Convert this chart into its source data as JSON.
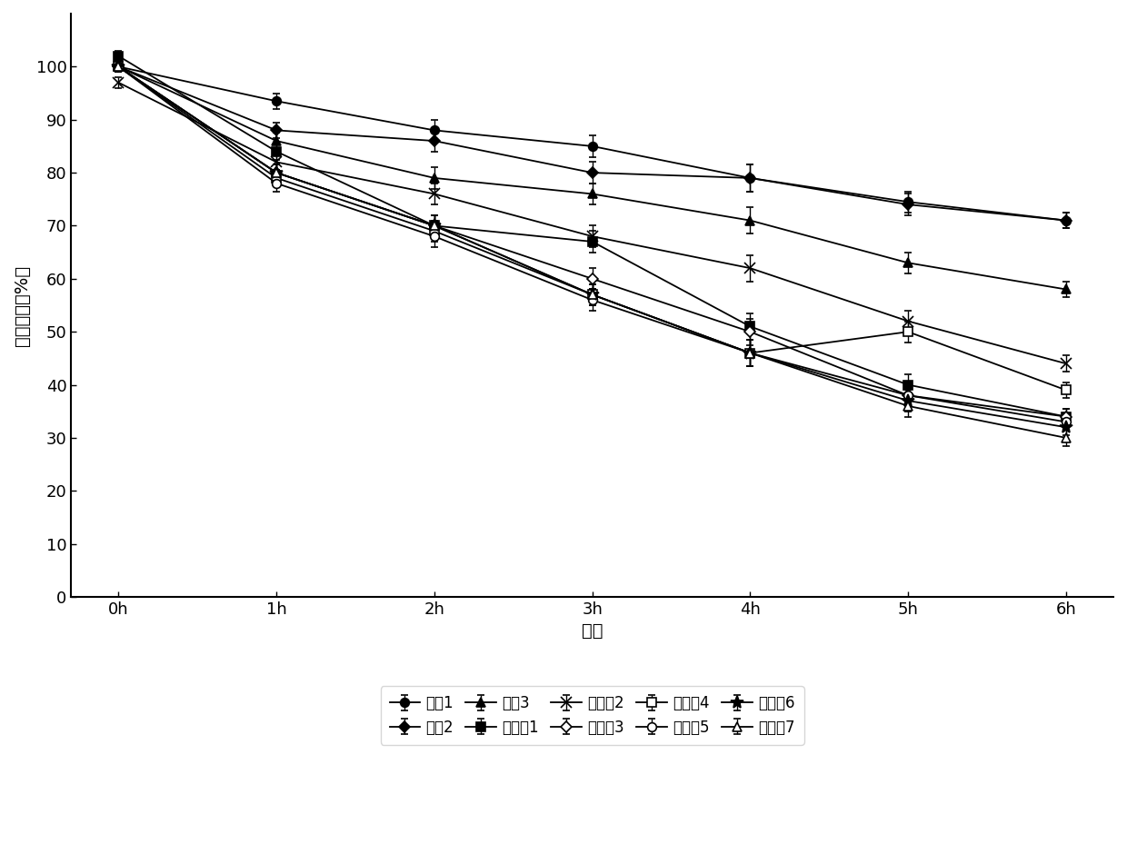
{
  "x_labels": [
    "0h",
    "1h",
    "2h",
    "3h",
    "4h",
    "5h",
    "6h"
  ],
  "x_values": [
    0,
    1,
    2,
    3,
    4,
    5,
    6
  ],
  "series": [
    {
      "name": "对比1",
      "y": [
        100,
        93.5,
        88,
        85,
        79,
        74.5,
        71
      ],
      "yerr": [
        1.0,
        1.5,
        2.0,
        2.0,
        2.5,
        2.0,
        1.5
      ],
      "marker": "o",
      "mfc": "black",
      "mec": "black",
      "ms": 7
    },
    {
      "name": "对比2",
      "y": [
        100,
        88,
        86,
        80,
        79,
        74,
        71
      ],
      "yerr": [
        1.0,
        1.5,
        2.0,
        2.0,
        2.5,
        2.0,
        1.5
      ],
      "marker": "D",
      "mfc": "black",
      "mec": "black",
      "ms": 6
    },
    {
      "name": "对比3",
      "y": [
        100,
        86,
        79,
        76,
        71,
        63,
        58
      ],
      "yerr": [
        1.0,
        1.5,
        2.0,
        2.0,
        2.5,
        2.0,
        1.5
      ],
      "marker": "^",
      "mfc": "black",
      "mec": "black",
      "ms": 7
    },
    {
      "name": "实施例1",
      "y": [
        102,
        84,
        70,
        67,
        51,
        40,
        34
      ],
      "yerr": [
        1.0,
        1.5,
        2.0,
        2.0,
        2.5,
        2.0,
        1.5
      ],
      "marker": "s",
      "mfc": "black",
      "mec": "black",
      "ms": 7
    },
    {
      "name": "实施例2",
      "y": [
        97,
        82,
        76,
        68,
        62,
        52,
        44
      ],
      "yerr": [
        1.0,
        1.5,
        2.0,
        2.0,
        2.5,
        2.0,
        1.5
      ],
      "marker": "x",
      "mfc": "black",
      "mec": "black",
      "ms": 8
    },
    {
      "name": "实施例3",
      "y": [
        100,
        80,
        70,
        60,
        50,
        38,
        34
      ],
      "yerr": [
        1.0,
        1.5,
        2.0,
        2.0,
        2.5,
        2.0,
        1.5
      ],
      "marker": "D",
      "mfc": "white",
      "mec": "black",
      "ms": 6
    },
    {
      "name": "实施例4",
      "y": [
        100,
        79,
        69,
        57,
        46,
        50,
        39
      ],
      "yerr": [
        1.0,
        1.5,
        2.0,
        2.0,
        2.5,
        2.0,
        1.5
      ],
      "marker": "s",
      "mfc": "white",
      "mec": "black",
      "ms": 7
    },
    {
      "name": "实施例5",
      "y": [
        100,
        78,
        68,
        56,
        46,
        38,
        33
      ],
      "yerr": [
        1.0,
        1.5,
        2.0,
        2.0,
        2.5,
        2.0,
        1.5
      ],
      "marker": "o",
      "mfc": "white",
      "mec": "black",
      "ms": 7
    },
    {
      "name": "实施例6",
      "y": [
        100,
        80,
        70,
        57,
        46,
        37,
        32
      ],
      "yerr": [
        1.0,
        1.5,
        2.0,
        2.0,
        2.5,
        2.0,
        1.5
      ],
      "marker": "*",
      "mfc": "black",
      "mec": "black",
      "ms": 10
    },
    {
      "name": "实施例7",
      "y": [
        100,
        80,
        70,
        57,
        46,
        36,
        30
      ],
      "yerr": [
        1.0,
        1.5,
        2.0,
        2.0,
        2.5,
        2.0,
        1.5
      ],
      "marker": "^",
      "mfc": "white",
      "mec": "black",
      "ms": 7
    }
  ],
  "ylabel": "相对酶活（%）",
  "xlabel": "时间",
  "ylim": [
    0,
    110
  ],
  "yticks": [
    0,
    10,
    20,
    30,
    40,
    50,
    60,
    70,
    80,
    90,
    100
  ],
  "background_color": "white"
}
